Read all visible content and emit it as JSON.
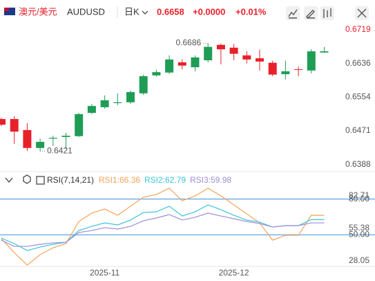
{
  "header": {
    "pair_cn": "澳元/美元",
    "symbol": "AUDUSD",
    "period": "日K",
    "price": "0.6658",
    "change": "+0.0000",
    "change_pct": "+0.01%"
  },
  "chart_data": [
    {
      "type": "candlestick",
      "categories": [
        null,
        null,
        null,
        null,
        null,
        null,
        null,
        null,
        "2025-11",
        null,
        null,
        null,
        null,
        null,
        null,
        null,
        null,
        null,
        "2025-12",
        null,
        null,
        null,
        null,
        null,
        null,
        null
      ],
      "open": [
        0.65,
        0.65,
        0.6473,
        0.6429,
        0.6452,
        0.6456,
        0.6458,
        0.6515,
        0.6529,
        0.6539,
        0.6541,
        0.6563,
        0.6607,
        0.6614,
        0.6639,
        0.6627,
        0.6644,
        0.6682,
        0.6675,
        0.6656,
        0.6649,
        0.6638,
        0.661,
        0.6622,
        0.6619,
        0.6663
      ],
      "high": [
        0.6503,
        0.6507,
        0.649,
        0.6452,
        0.6459,
        0.6466,
        0.6515,
        0.6537,
        0.6558,
        0.6563,
        0.657,
        0.6609,
        0.6621,
        0.6656,
        0.6646,
        0.6656,
        0.6686,
        0.6685,
        0.6684,
        0.6666,
        0.667,
        0.6643,
        0.6643,
        0.6629,
        0.6671,
        0.6677
      ],
      "low": [
        0.6483,
        0.6439,
        0.6422,
        0.6421,
        0.6434,
        0.6427,
        0.6456,
        0.6512,
        0.6525,
        0.6534,
        0.6537,
        0.6559,
        0.6604,
        0.661,
        0.6622,
        0.6617,
        0.6639,
        0.6634,
        0.6644,
        0.6636,
        0.6619,
        0.6605,
        0.6597,
        0.6605,
        0.6612,
        0.6663
      ],
      "close": [
        0.6486,
        0.6469,
        0.6429,
        0.6444,
        0.6454,
        0.6459,
        0.6512,
        0.6532,
        0.6546,
        0.6541,
        0.6566,
        0.6605,
        0.6615,
        0.6646,
        0.6631,
        0.6651,
        0.6677,
        0.6671,
        0.666,
        0.6646,
        0.6641,
        0.6609,
        0.6617,
        0.6621,
        0.6666,
        0.6666
      ],
      "up_color": "#1f9d55",
      "down_color": "#e8202a",
      "ylim": [
        0.6376,
        0.6741
      ],
      "yticks": [
        0.6719,
        0.6636,
        0.6554,
        0.6471,
        0.6388
      ],
      "annotations": [
        {
          "label": "0.6686",
          "value": 0.6686
        },
        {
          "label": "0.6421",
          "value": 0.6421
        }
      ]
    },
    {
      "type": "line",
      "title": "RSI(7,14,21)",
      "series": [
        {
          "name": "RSI1:66.36",
          "color": "#f5a35c",
          "values": [
            46.7,
            35.0,
            24.6,
            33.3,
            39.1,
            42.6,
            61.2,
            68.2,
            71.7,
            66.4,
            74.0,
            81.5,
            83.9,
            89.1,
            78.6,
            82.7,
            89.1,
            82.7,
            75.1,
            67.6,
            60.0,
            45.5,
            49.6,
            49.6,
            66.4,
            66.36
          ]
        },
        {
          "name": "RSI2:62.79",
          "color": "#3cc4d8",
          "values": [
            47.2,
            42.6,
            36.8,
            39.7,
            42.0,
            43.7,
            53.6,
            57.1,
            60.0,
            58.3,
            62.4,
            68.7,
            69.3,
            74.0,
            65.8,
            69.3,
            75.1,
            71.1,
            66.4,
            62.4,
            60.6,
            56.5,
            57.7,
            57.7,
            62.8,
            62.79
          ]
        },
        {
          "name": "RSI3:59.98",
          "color": "#9b8ed6",
          "values": [
            45.5,
            40.3,
            40.3,
            42.0,
            43.2,
            43.7,
            51.9,
            53.6,
            56.0,
            54.8,
            57.1,
            61.8,
            64.1,
            67.0,
            62.4,
            64.7,
            68.2,
            65.8,
            63.5,
            61.2,
            59.4,
            56.5,
            57.7,
            57.7,
            60.0,
            59.98
          ]
        }
      ],
      "ylim": [
        14.7,
        91.4
      ],
      "yticks": [
        82.71,
        55.38,
        28.05
      ],
      "hlines": [
        {
          "value": 80,
          "label": "80.00"
        },
        {
          "value": 50,
          "label": "50.00"
        }
      ],
      "hline_color": "#3a8fd9"
    }
  ]
}
